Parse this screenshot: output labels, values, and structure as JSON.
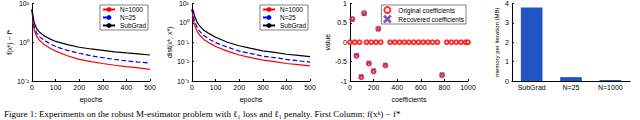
{
  "caption": "Figure 1: Experiments on the robust M-estimator problem with ℓ₁ loss and ℓ₁ penalty. First Column: f(xᵏ) − f*",
  "chart_data": [
    {
      "type": "line",
      "x_label": "epochs",
      "y_label": "f(xᵏ) − f*",
      "log": "y",
      "grid": false,
      "legend": "upper right",
      "xlim": [
        0,
        500
      ],
      "xticks": [
        0,
        100,
        200,
        300,
        400,
        500
      ],
      "ylim": [
        0.01,
        100
      ],
      "yticks": [
        {
          "value": 0.01,
          "label": "10⁻²"
        },
        {
          "value": 1,
          "label": "10⁰"
        },
        {
          "value": 100,
          "label": "10²"
        }
      ],
      "x": [
        0,
        5,
        10,
        20,
        30,
        50,
        75,
        100,
        150,
        200,
        250,
        300,
        350,
        400,
        450,
        500
      ],
      "series": [
        {
          "name": "N=1000",
          "color": "#ff0000",
          "line_style": "solid",
          "values": [
            50,
            8,
            4,
            2,
            1.3,
            0.8,
            0.5,
            0.35,
            0.2,
            0.13,
            0.1,
            0.08,
            0.065,
            0.055,
            0.048,
            0.04
          ]
        },
        {
          "name": "N=25",
          "color": "#0000ff",
          "line_style": "dashed",
          "values": [
            50,
            12,
            6,
            3,
            2,
            1.3,
            0.85,
            0.6,
            0.38,
            0.27,
            0.2,
            0.16,
            0.13,
            0.11,
            0.095,
            0.085
          ]
        },
        {
          "name": "SubGrad",
          "color": "#000000",
          "line_style": "solid",
          "values": [
            50,
            20,
            10,
            5,
            3.5,
            2.2,
            1.5,
            1.1,
            0.75,
            0.55,
            0.45,
            0.38,
            0.32,
            0.28,
            0.25,
            0.22
          ]
        }
      ]
    },
    {
      "type": "line",
      "x_label": "epochs",
      "y_label": "dist(xᵏ, x*)",
      "log": "y",
      "grid": false,
      "legend": "upper right",
      "xlim": [
        0,
        500
      ],
      "xticks": [
        0,
        100,
        200,
        300,
        400,
        500
      ],
      "ylim": [
        0.001,
        10
      ],
      "yticks": [
        {
          "value": 0.001,
          "label": "10⁻³"
        },
        {
          "value": 0.01,
          "label": "10⁻²"
        },
        {
          "value": 0.1,
          "label": "10⁻¹"
        },
        {
          "value": 1,
          "label": "10⁰"
        },
        {
          "value": 10,
          "label": "10¹"
        }
      ],
      "x": [
        0,
        5,
        10,
        20,
        30,
        50,
        75,
        100,
        150,
        200,
        250,
        300,
        350,
        400,
        450,
        500
      ],
      "series": [
        {
          "name": "N=1000",
          "color": "#ff0000",
          "line_style": "solid",
          "values": [
            5,
            1.5,
            0.8,
            0.4,
            0.25,
            0.14,
            0.09,
            0.06,
            0.035,
            0.022,
            0.016,
            0.012,
            0.01,
            0.008,
            0.007,
            0.006
          ]
        },
        {
          "name": "N=25",
          "color": "#0000ff",
          "line_style": "dashed",
          "values": [
            5,
            2.4,
            1.3,
            0.65,
            0.4,
            0.22,
            0.14,
            0.095,
            0.056,
            0.035,
            0.026,
            0.019,
            0.016,
            0.013,
            0.011,
            0.0095
          ]
        },
        {
          "name": "SubGrad",
          "color": "#000000",
          "line_style": "solid",
          "values": [
            5,
            4.5,
            2.4,
            1.2,
            0.75,
            0.42,
            0.27,
            0.18,
            0.1,
            0.066,
            0.048,
            0.036,
            0.03,
            0.024,
            0.021,
            0.018
          ]
        }
      ]
    },
    {
      "type": "scatter",
      "x_label": "coefficients",
      "y_label": "value",
      "grid": false,
      "legend": "upper right",
      "xlim": [
        0,
        1000
      ],
      "xticks": [
        0,
        200,
        400,
        600,
        800,
        1000
      ],
      "ylim": [
        -1,
        1
      ],
      "yticks": [
        -1,
        -0.5,
        0,
        0.5,
        1
      ],
      "series": [
        {
          "name": "Original coefficients",
          "color": "#ff0000",
          "marker": "o",
          "x": [
            20,
            55,
            95,
            120,
            160,
            200,
            240,
            300,
            780,
            0,
            40,
            80,
            140,
            180,
            220,
            260,
            340,
            380,
            420,
            460,
            500,
            540,
            580,
            620,
            660,
            700,
            740,
            820,
            860,
            900,
            940,
            980,
            1000
          ],
          "values": [
            0.6,
            -0.35,
            -0.9,
            0.75,
            -0.55,
            -0.75,
            0.35,
            -0.6,
            -0.85,
            0,
            0,
            0,
            0,
            0,
            0,
            0,
            0,
            0,
            0,
            0,
            0,
            0,
            0,
            0,
            0,
            0,
            0,
            0,
            0,
            0,
            0,
            0,
            0
          ]
        },
        {
          "name": "Recovered coefficients",
          "color": "#6a3fb0",
          "marker": "x",
          "x": [
            20,
            55,
            95,
            120,
            160,
            200,
            240,
            300,
            780
          ],
          "values": [
            0.58,
            -0.33,
            -0.88,
            0.73,
            -0.53,
            -0.72,
            0.33,
            -0.58,
            -0.83
          ]
        }
      ]
    },
    {
      "type": "bar",
      "y_label": "memory per iteration (MB)",
      "grid": false,
      "color": "#2255c4",
      "categories": [
        "SubGrad",
        "N=25",
        "N=1000"
      ],
      "values": [
        3.8,
        0.2,
        0.05
      ],
      "ylim": [
        0,
        4
      ],
      "yticks": [
        0,
        1,
        2,
        3,
        4
      ]
    }
  ]
}
